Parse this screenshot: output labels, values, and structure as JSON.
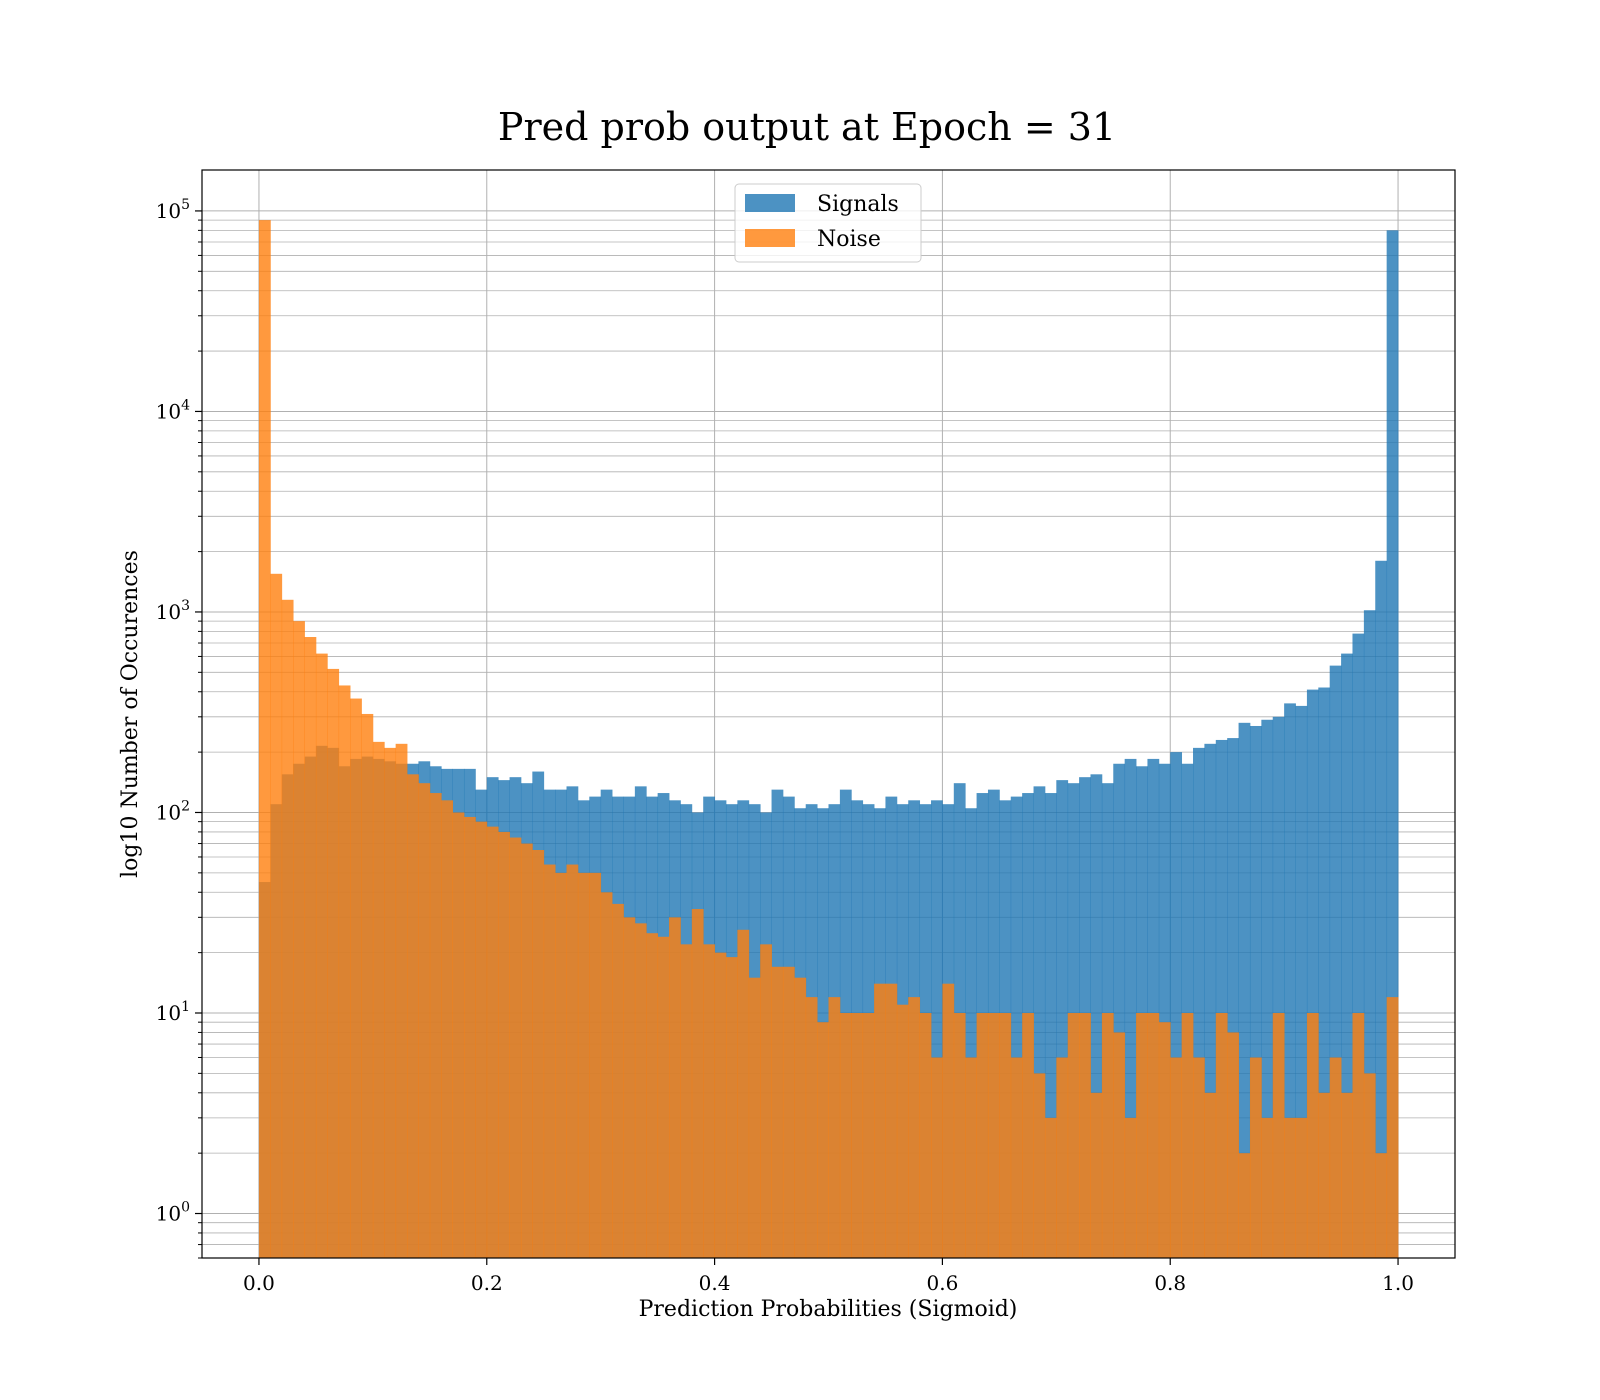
{
  "chart_data": {
    "type": "bar",
    "title": "Pred prob output at Epoch = 31",
    "xlabel": "Prediction Probabilities (Sigmoid)",
    "ylabel": "log10 Number of Occurences",
    "xlim": [
      -0.05,
      1.05
    ],
    "ylim": [
      0.6,
      160000
    ],
    "yscale": "log",
    "grid": true,
    "legend_position": "top-center",
    "bin_width": 0.01,
    "x_start": 0.0,
    "x_ticks": [
      "0.0",
      "0.2",
      "0.4",
      "0.6",
      "0.8",
      "1.0"
    ],
    "y_ticks": [
      {
        "base": "10",
        "exp": "0"
      },
      {
        "base": "10",
        "exp": "1"
      },
      {
        "base": "10",
        "exp": "2"
      },
      {
        "base": "10",
        "exp": "3"
      },
      {
        "base": "10",
        "exp": "4"
      },
      {
        "base": "10",
        "exp": "5"
      }
    ],
    "series": [
      {
        "name": "Signals",
        "color": "#1f77b4",
        "opacity": 0.8,
        "values": [
          45,
          110,
          155,
          175,
          190,
          215,
          210,
          170,
          185,
          190,
          185,
          180,
          175,
          175,
          180,
          170,
          165,
          165,
          165,
          130,
          150,
          145,
          150,
          140,
          160,
          130,
          130,
          135,
          115,
          120,
          130,
          120,
          120,
          135,
          120,
          125,
          115,
          110,
          100,
          120,
          115,
          110,
          115,
          110,
          100,
          130,
          120,
          105,
          110,
          105,
          110,
          130,
          115,
          110,
          105,
          120,
          110,
          115,
          110,
          115,
          110,
          140,
          105,
          125,
          130,
          115,
          120,
          125,
          135,
          125,
          145,
          140,
          150,
          155,
          140,
          175,
          185,
          170,
          185,
          175,
          200,
          175,
          210,
          220,
          230,
          235,
          280,
          270,
          290,
          300,
          350,
          340,
          410,
          420,
          540,
          620,
          780,
          1020,
          1800,
          80000
        ]
      },
      {
        "name": "Noise",
        "color": "#ff7f0e",
        "opacity": 0.8,
        "values": [
          90000,
          1550,
          1150,
          900,
          750,
          620,
          520,
          430,
          370,
          310,
          225,
          210,
          220,
          155,
          140,
          125,
          115,
          100,
          95,
          90,
          85,
          80,
          75,
          70,
          65,
          55,
          50,
          55,
          50,
          50,
          40,
          35,
          30,
          28,
          25,
          24,
          30,
          22,
          33,
          22,
          20,
          19,
          26,
          15,
          22,
          17,
          17,
          15,
          12,
          9,
          12,
          10,
          10,
          10,
          14,
          14,
          11,
          12,
          10,
          6,
          14,
          10,
          6,
          10,
          10,
          10,
          6,
          10,
          5,
          3,
          6,
          10,
          10,
          4,
          10,
          8,
          3,
          10,
          10,
          9,
          6,
          10,
          6,
          4,
          10,
          8,
          2,
          6,
          3,
          10,
          3,
          3,
          10,
          4,
          6,
          4,
          10,
          5,
          2,
          12
        ]
      }
    ]
  }
}
